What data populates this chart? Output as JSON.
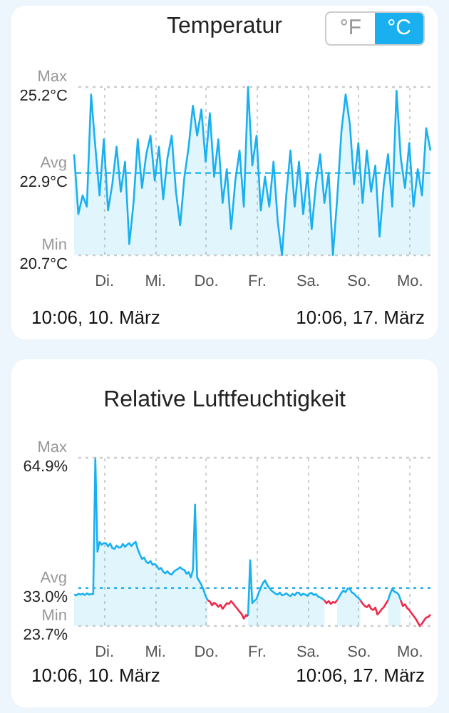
{
  "chart_data": [
    {
      "type": "area",
      "title": "Temperatur",
      "annotations": [
        "°F",
        "°C",
        "10:06, 10. März",
        "10:06, 17. März"
      ],
      "categories": [
        null,
        null,
        null,
        null,
        null,
        null,
        null,
        "Di.",
        null,
        null,
        null,
        null,
        null,
        null,
        null,
        null,
        null,
        null,
        null,
        "Mi.",
        null,
        null,
        null,
        null,
        null,
        null,
        null,
        null,
        null,
        null,
        null,
        "Do.",
        null,
        null,
        null,
        null,
        null,
        null,
        null,
        null,
        null,
        null,
        null,
        "Fr.",
        null,
        null,
        null,
        null,
        null,
        null,
        null,
        null,
        null,
        null,
        null,
        "Sa.",
        null,
        null,
        null,
        null,
        null,
        null,
        null,
        null,
        null,
        null,
        null,
        "So.",
        null,
        null,
        null,
        null,
        null,
        null,
        null,
        null,
        null,
        null,
        null,
        "Mo.",
        null,
        null,
        null,
        null,
        null
      ],
      "series": [
        {
          "color": "#1ab0f0",
          "values": [
            23.4,
            21.8,
            22.3,
            22.0,
            25.0,
            23.6,
            22.3,
            23.8,
            21.9,
            22.6,
            23.6,
            22.4,
            23.2,
            21.0,
            22.1,
            23.8,
            22.5,
            23.4,
            23.9,
            22.7,
            23.6,
            22.2,
            23.3,
            23.9,
            22.4,
            21.5,
            22.8,
            23.6,
            24.7,
            23.9,
            24.6,
            23.2,
            24.5,
            22.8,
            23.8,
            22.1,
            23.0,
            21.4,
            22.7,
            23.5,
            22.0,
            25.2,
            23.1,
            23.9,
            21.9,
            22.8,
            22.0,
            23.2,
            21.6,
            20.7,
            22.3,
            23.5,
            22.0,
            23.2,
            21.8,
            22.9,
            21.4,
            22.6,
            23.4,
            22.1,
            22.9,
            20.7,
            22.2,
            24.0,
            25.0,
            24.2,
            22.6,
            23.7,
            22.1,
            23.5,
            22.4,
            23.1,
            21.2,
            22.6,
            23.4,
            22.0,
            25.1,
            23.3,
            22.5,
            23.7,
            22.0,
            23.0,
            22.3,
            24.1,
            23.5
          ]
        }
      ],
      "ylim": [
        20.7,
        25.2
      ],
      "yticks": [
        {
          "value": 20.7,
          "label": "20.7°C"
        },
        {
          "value": 22.9,
          "label": "22.9°C"
        },
        {
          "value": 25.2,
          "label": "25.2°C"
        }
      ],
      "ref_lines": [
        {
          "axis": "y",
          "value": 25.2,
          "label": "Max",
          "color": "#cccccc",
          "line_style": "dotted"
        },
        {
          "axis": "y",
          "value": 22.9,
          "label": "Avg",
          "color": "#1ab0f0",
          "line_style": "dashed"
        },
        {
          "axis": "y",
          "value": 20.7,
          "label": "Min",
          "color": "#cccccc",
          "line_style": "dotted"
        }
      ],
      "grid": "x"
    },
    {
      "type": "area",
      "title": "Relative Luftfeuchtigkeit",
      "annotations": [
        "10:06, 10. März",
        "10:06, 17. März"
      ],
      "categories": [
        null,
        null,
        null,
        null,
        null,
        null,
        null,
        null,
        null,
        null,
        null,
        null,
        null,
        null,
        "Di.",
        null,
        null,
        null,
        null,
        null,
        null,
        null,
        null,
        null,
        null,
        null,
        null,
        null,
        null,
        null,
        null,
        null,
        null,
        null,
        null,
        null,
        null,
        null,
        "Mi.",
        null,
        null,
        null,
        null,
        null,
        null,
        null,
        null,
        null,
        null,
        null,
        null,
        null,
        null,
        null,
        null,
        null,
        null,
        null,
        null,
        null,
        null,
        null,
        "Do.",
        null,
        null,
        null,
        null,
        null,
        null,
        null,
        null,
        null,
        null,
        null,
        null,
        null,
        null,
        null,
        null,
        null,
        null,
        null,
        null,
        null,
        null,
        null,
        "Fr.",
        null,
        null,
        null,
        null,
        null,
        null,
        null,
        null,
        null,
        null,
        null,
        null,
        null,
        null,
        null,
        null,
        null,
        null,
        null,
        null,
        null,
        null,
        null,
        "Sa.",
        null,
        null,
        null,
        null,
        null,
        null,
        null,
        null,
        null,
        null,
        null,
        null,
        null,
        null,
        null,
        null,
        null,
        null,
        null,
        null,
        null,
        null,
        null,
        "So.",
        null,
        null,
        null,
        null,
        null,
        null,
        null,
        null,
        null,
        null,
        null,
        null,
        null,
        null,
        null,
        null,
        null,
        null,
        null,
        null,
        null,
        null,
        null,
        "Mo.",
        null,
        null,
        null,
        null,
        null,
        null,
        null,
        null,
        null,
        null
      ],
      "series": [
        {
          "color": "#1ab0f0",
          "values": [
            31.4,
            31.2,
            31.6,
            31.4,
            31.6,
            31.3,
            31.7,
            31.4,
            31.5,
            31.5,
            64.9,
            41.9,
            44.3,
            43.6,
            44.0,
            44.0,
            43.2,
            43.9,
            42.8,
            42.6,
            43.4,
            42.9,
            43.0,
            43.8,
            43.1,
            43.6,
            44.0,
            43.3,
            43.9,
            44.3,
            42.5,
            41.2,
            40.1,
            40.5,
            39.4,
            39.1,
            39.6,
            38.7,
            38.9,
            38.4,
            37.6,
            37.9,
            37.0,
            36.6,
            37.1,
            36.5,
            36.3,
            37.0,
            37.4,
            37.7,
            38.1,
            37.6,
            37.4,
            36.5,
            36.9,
            35.6,
            37.4,
            53.4,
            35.6,
            34.7,
            33.8,
            32.6,
            31.0,
            30.0,
            null,
            null,
            null,
            null,
            null,
            null,
            null,
            null,
            null,
            null,
            null,
            null,
            null,
            null,
            null,
            null,
            null,
            null,
            26.2,
            39.8,
            29.3,
            29.9,
            30.3,
            31.8,
            33.1,
            34.2,
            34.9,
            33.8,
            33.1,
            32.4,
            32.0,
            31.6,
            31.4,
            31.9,
            31.2,
            31.4,
            31.7,
            31.3,
            31.0,
            31.6,
            31.2,
            31.9,
            31.8,
            31.2,
            31.6,
            31.4,
            31.1,
            31.7,
            31.8,
            31.3,
            31.5,
            30.9,
            30.7,
            30.4,
            30.0,
            null,
            null,
            null,
            null,
            null,
            30.0,
            30.9,
            31.8,
            32.4,
            32.0,
            32.9,
            32.8,
            31.9,
            31.6,
            31.0,
            30.6,
            30.0,
            null,
            null,
            null,
            null,
            null,
            null,
            null,
            null,
            null,
            null,
            null,
            null,
            30.0,
            31.6,
            32.8,
            32.1,
            31.9,
            31.4,
            30.0,
            null,
            null,
            null,
            null,
            null,
            null,
            null,
            null,
            null,
            null,
            null,
            null,
            null,
            null
          ]
        },
        {
          "color": "#f0284a",
          "type": "line",
          "values": [
            null,
            null,
            null,
            null,
            null,
            null,
            null,
            null,
            null,
            null,
            null,
            null,
            null,
            null,
            null,
            null,
            null,
            null,
            null,
            null,
            null,
            null,
            null,
            null,
            null,
            null,
            null,
            null,
            null,
            null,
            null,
            null,
            null,
            null,
            null,
            null,
            null,
            null,
            null,
            null,
            null,
            null,
            null,
            null,
            null,
            null,
            null,
            null,
            null,
            null,
            null,
            null,
            null,
            null,
            null,
            null,
            null,
            null,
            null,
            null,
            null,
            null,
            null,
            30.0,
            29.7,
            28.8,
            29.4,
            29.0,
            28.4,
            28.9,
            27.9,
            28.6,
            29.3,
            29.1,
            29.8,
            29.2,
            28.5,
            27.9,
            27.2,
            26.6,
            25.5,
            26.4,
            26.2,
            null,
            null,
            null,
            null,
            null,
            null,
            null,
            null,
            null,
            null,
            null,
            null,
            null,
            null,
            null,
            null,
            null,
            null,
            null,
            null,
            null,
            null,
            null,
            null,
            null,
            null,
            null,
            null,
            null,
            null,
            null,
            null,
            null,
            null,
            null,
            30.0,
            29.3,
            29.8,
            29.1,
            29.6,
            29.4,
            30.0,
            null,
            null,
            null,
            null,
            null,
            null,
            null,
            null,
            null,
            null,
            30.0,
            29.2,
            28.6,
            28.3,
            28.9,
            27.9,
            27.6,
            28.2,
            26.5,
            27.1,
            27.8,
            28.3,
            29.2,
            30.0,
            null,
            null,
            null,
            null,
            null,
            30.0,
            28.6,
            29.0,
            28.1,
            27.6,
            26.9,
            26.2,
            25.5,
            24.6,
            23.7,
            24.3,
            25.1,
            25.8,
            25.9,
            26.5
          ]
        }
      ],
      "ylim": [
        23.7,
        64.9
      ],
      "yticks": [
        {
          "value": 23.7,
          "label": "23.7%"
        },
        {
          "value": 33.0,
          "label": "33.0%"
        },
        {
          "value": 64.9,
          "label": "64.9%"
        }
      ],
      "ref_lines": [
        {
          "axis": "y",
          "value": 64.9,
          "label": "Max",
          "color": "#cccccc",
          "line_style": "dotted"
        },
        {
          "axis": "y",
          "value": 33.0,
          "label": "Avg",
          "color": "#1ab0f0",
          "line_style": "dotted"
        },
        {
          "axis": "y",
          "value": 23.7,
          "label": "Min",
          "color": "#cccccc",
          "line_style": "dotted"
        }
      ],
      "grid": "x"
    }
  ]
}
